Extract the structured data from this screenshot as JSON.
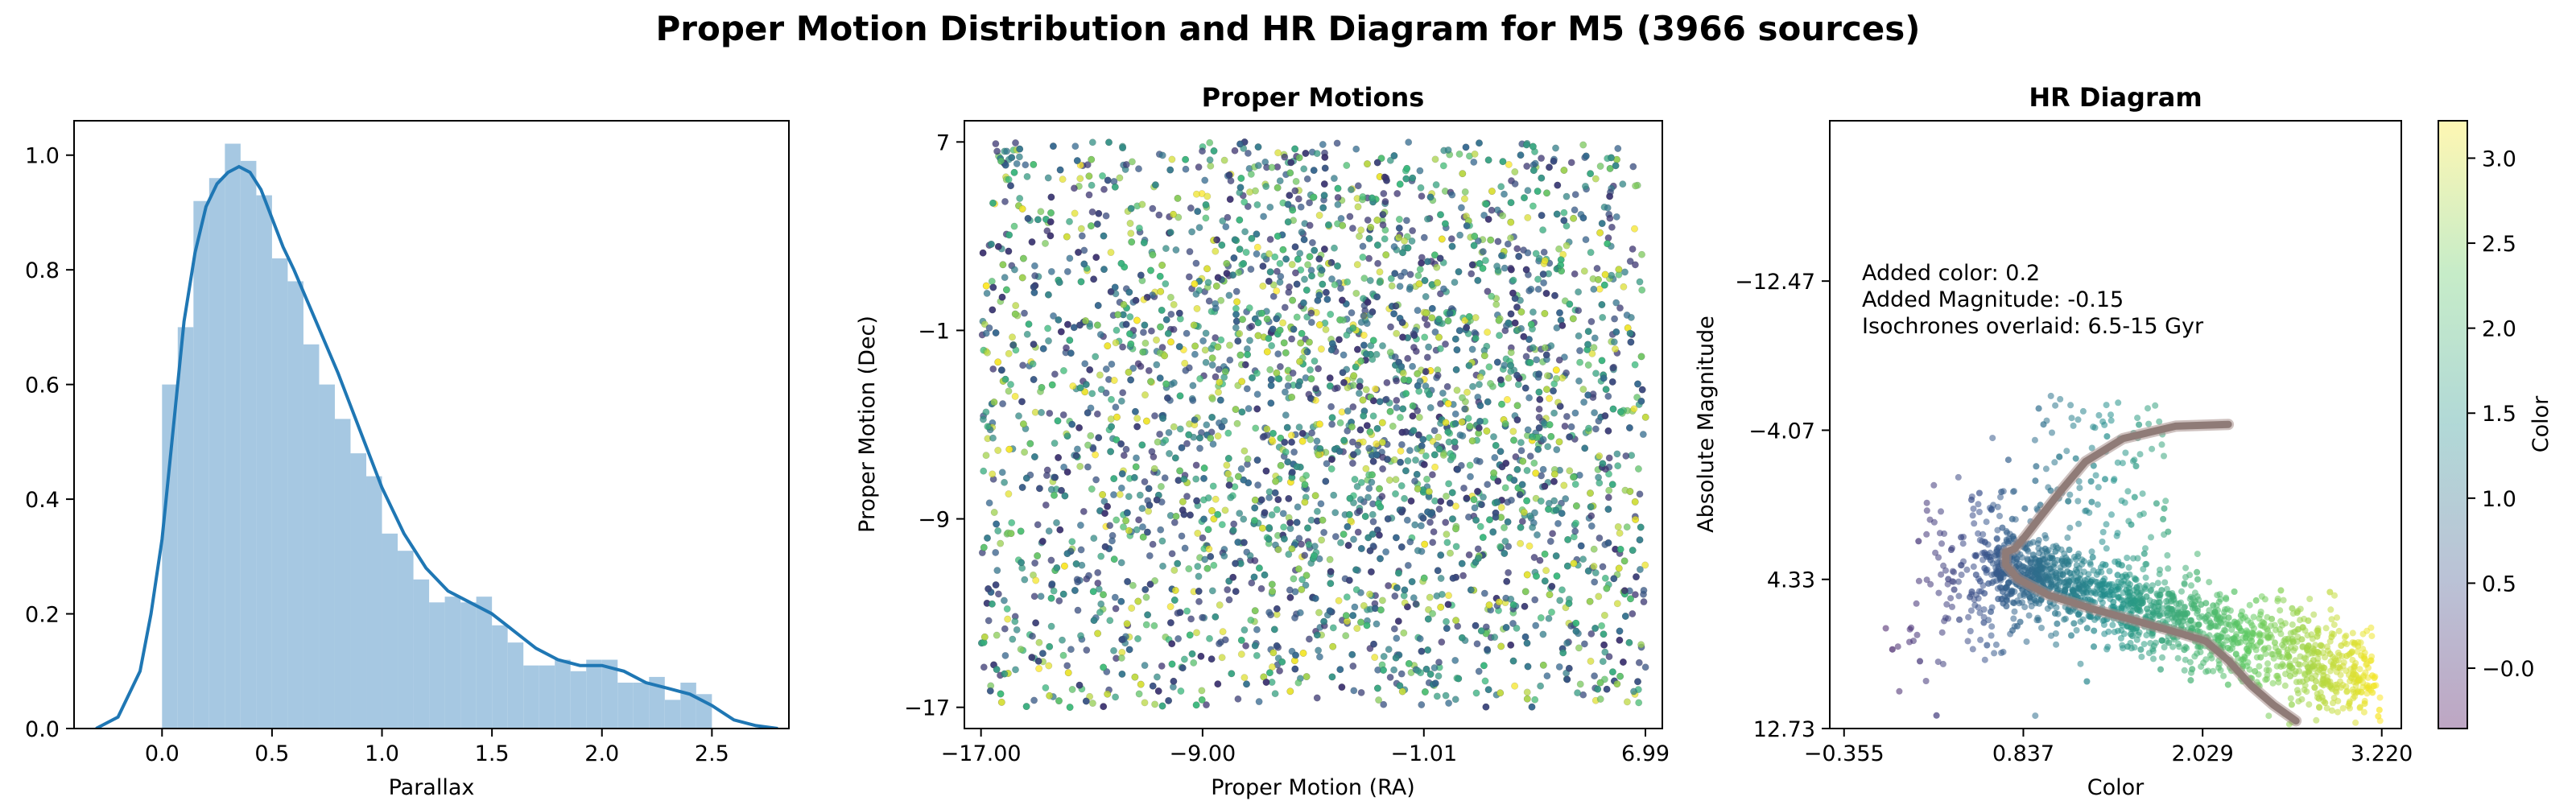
{
  "title": "Proper Motion Distribution and HR Diagram for M5 (3966 sources)",
  "colors": {
    "hist_bar": "#a6c8e2",
    "kde_line": "#1f77b4",
    "isochrone": "#8f7b77",
    "isochrone_edge": "#a58e8a"
  },
  "chart_data": [
    {
      "type": "bar",
      "title": "",
      "xlabel": "Parallax",
      "ylabel": "",
      "xlim": [
        -0.4,
        2.85
      ],
      "ylim": [
        0,
        1.06
      ],
      "xticks": [
        "0.0",
        "0.5",
        "1.0",
        "1.5",
        "2.0",
        "2.5"
      ],
      "yticks": [
        "0.0",
        "0.2",
        "0.4",
        "0.6",
        "0.8",
        "1.0"
      ],
      "bin_edges": [
        0.0,
        0.0714,
        0.1429,
        0.2143,
        0.2857,
        0.3571,
        0.4286,
        0.5,
        0.5714,
        0.6429,
        0.7143,
        0.7857,
        0.8571,
        0.9286,
        1.0,
        1.0714,
        1.1429,
        1.2143,
        1.2857,
        1.3571,
        1.4286,
        1.5,
        1.5714,
        1.6429,
        1.7143,
        1.7857,
        1.8571,
        1.9286,
        2.0,
        2.0714,
        2.1429,
        2.2143,
        2.2857,
        2.3571,
        2.4286,
        2.5
      ],
      "values": [
        0.6,
        0.7,
        0.92,
        0.96,
        1.02,
        0.99,
        0.93,
        0.82,
        0.78,
        0.67,
        0.6,
        0.54,
        0.48,
        0.44,
        0.34,
        0.31,
        0.26,
        0.22,
        0.23,
        0.22,
        0.23,
        0.18,
        0.15,
        0.11,
        0.11,
        0.12,
        0.1,
        0.12,
        0.12,
        0.08,
        0.08,
        0.09,
        0.05,
        0.08,
        0.06
      ],
      "kde": {
        "x": [
          -0.3,
          -0.2,
          -0.1,
          -0.05,
          0.0,
          0.05,
          0.1,
          0.15,
          0.2,
          0.25,
          0.3,
          0.35,
          0.4,
          0.45,
          0.5,
          0.55,
          0.6,
          0.7,
          0.8,
          0.9,
          1.0,
          1.1,
          1.2,
          1.3,
          1.4,
          1.5,
          1.6,
          1.7,
          1.8,
          1.9,
          2.0,
          2.1,
          2.2,
          2.3,
          2.4,
          2.5,
          2.6,
          2.7,
          2.8
        ],
        "y": [
          0.0,
          0.02,
          0.1,
          0.2,
          0.33,
          0.52,
          0.71,
          0.83,
          0.91,
          0.95,
          0.97,
          0.98,
          0.97,
          0.94,
          0.89,
          0.84,
          0.8,
          0.71,
          0.62,
          0.52,
          0.42,
          0.34,
          0.28,
          0.24,
          0.22,
          0.2,
          0.17,
          0.14,
          0.12,
          0.11,
          0.11,
          0.1,
          0.08,
          0.07,
          0.06,
          0.04,
          0.015,
          0.005,
          0.0
        ]
      }
    },
    {
      "type": "scatter",
      "title": "Proper Motions",
      "xlabel": "Proper Motion (RA)",
      "ylabel": "Proper Motion (Dec)",
      "xlim": [
        -17.6,
        7.6
      ],
      "ylim": [
        -17.9,
        7.9
      ],
      "xticks": [
        {
          "value": -17.0,
          "label": "−17.00"
        },
        {
          "value": -9.0,
          "label": "−9.00"
        },
        {
          "value": -1.01,
          "label": "−1.01"
        },
        {
          "value": 6.99,
          "label": "6.99"
        }
      ],
      "yticks": [
        {
          "value": 7,
          "label": "7"
        },
        {
          "value": -1,
          "label": "−1"
        },
        {
          "value": -9,
          "label": "−9"
        },
        {
          "value": -17,
          "label": "−17"
        }
      ],
      "n_points": 3966,
      "center": [
        -3.0,
        -4.0
      ],
      "spread": [
        7.5,
        7.5
      ],
      "x_range": [
        -17.0,
        7.0
      ],
      "y_range": [
        -17.0,
        7.0
      ],
      "colormap": [
        "#440154",
        "#31688e",
        "#35b779",
        "#fde725"
      ]
    },
    {
      "type": "scatter",
      "title": "HR Diagram",
      "xlabel": "Color",
      "ylabel": "Absolute Magnitude",
      "xlim": [
        -0.45,
        3.35
      ],
      "ylim": [
        12.73,
        -21.5
      ],
      "y_inverted": true,
      "xticks": [
        {
          "value": -0.355,
          "label": "−0.355"
        },
        {
          "value": 0.837,
          "label": "0.837"
        },
        {
          "value": 2.029,
          "label": "2.029"
        },
        {
          "value": 3.22,
          "label": "3.220"
        }
      ],
      "yticks": [
        {
          "value": -12.47,
          "label": "−12.47"
        },
        {
          "value": -4.07,
          "label": "−4.07"
        },
        {
          "value": 4.33,
          "label": "4.33"
        },
        {
          "value": 12.73,
          "label": "12.73"
        }
      ],
      "annotations": [
        "Added color: 0.2",
        "Added Magnitude: -0.15",
        "Isochrones overlaid: 6.5-15 Gyr"
      ],
      "n_points": 3966,
      "isochrone": {
        "color": [
          2.2,
          1.85,
          1.5,
          1.25,
          1.1,
          0.95,
          0.85,
          0.78,
          0.72,
          0.72,
          0.8,
          1.0,
          1.3,
          1.6,
          1.85,
          2.05,
          2.2,
          2.35,
          2.5,
          2.65
        ],
        "magnitude": [
          -4.4,
          -4.3,
          -3.6,
          -2.3,
          -0.8,
          0.8,
          1.9,
          2.6,
          2.8,
          3.5,
          4.3,
          5.2,
          6.0,
          6.7,
          7.3,
          7.8,
          8.9,
          10.3,
          11.4,
          12.3
        ]
      },
      "colorbar": {
        "label": "Color",
        "range": [
          -0.355,
          3.22
        ],
        "ticks": [
          "−0.0",
          "0.5",
          "1.0",
          "1.5",
          "2.0",
          "2.5",
          "3.0"
        ],
        "tick_values": [
          0,
          0.5,
          1.0,
          1.5,
          2.0,
          2.5,
          3.0
        ],
        "colormap": [
          "#440154",
          "#3b528b",
          "#21918c",
          "#5ec962",
          "#fde725"
        ]
      }
    }
  ]
}
